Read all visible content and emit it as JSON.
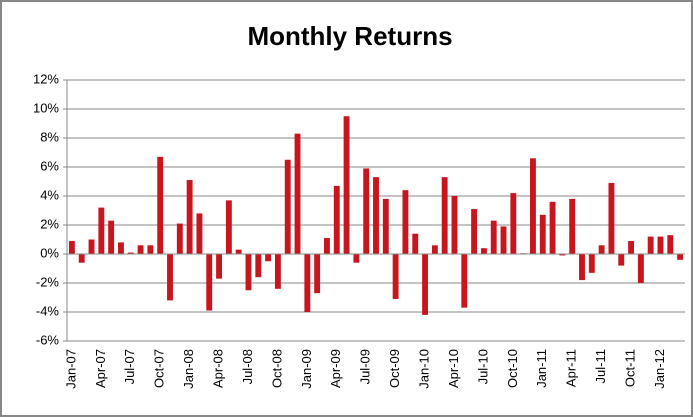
{
  "chart_data": {
    "type": "bar",
    "title": "Monthly Returns",
    "categories": [
      "Jan-07",
      null,
      null,
      "Apr-07",
      null,
      null,
      "Jul-07",
      null,
      null,
      "Oct-07",
      null,
      null,
      "Jan-08",
      null,
      null,
      "Apr-08",
      null,
      null,
      "Jul-08",
      null,
      null,
      "Oct-08",
      null,
      null,
      "Jan-09",
      null,
      null,
      "Apr-09",
      null,
      null,
      "Jul-09",
      null,
      null,
      "Oct-09",
      null,
      null,
      "Jan-10",
      null,
      null,
      "Apr-10",
      null,
      null,
      "Jul-10",
      null,
      null,
      "Oct-10",
      null,
      null,
      "Jan-11",
      null,
      null,
      "Apr-11",
      null,
      null,
      "Jul-11",
      null,
      null,
      "Oct-11",
      null,
      null,
      "Jan-12",
      null,
      null
    ],
    "values": [
      0.9,
      -0.6,
      1.0,
      3.2,
      2.3,
      0.8,
      0.1,
      0.6,
      0.6,
      6.7,
      -3.2,
      2.1,
      5.1,
      2.8,
      -3.9,
      -1.7,
      3.7,
      0.3,
      -2.5,
      -1.6,
      -0.5,
      -2.4,
      6.5,
      8.3,
      -4.0,
      -2.7,
      1.1,
      4.7,
      9.5,
      -0.6,
      5.9,
      5.3,
      3.8,
      -3.1,
      4.4,
      1.4,
      -4.2,
      0.6,
      5.3,
      4.0,
      -3.7,
      3.1,
      0.4,
      2.3,
      1.9,
      4.2,
      0.05,
      6.6,
      2.7,
      3.6,
      -0.1,
      3.8,
      -1.8,
      -1.3,
      0.6,
      4.9,
      -0.8,
      0.9,
      -2.0,
      1.2,
      1.2,
      1.3,
      -0.4
    ],
    "color": "#c8161e",
    "ylim": [
      -6,
      12
    ],
    "yticks": [
      {
        "value": -6,
        "label": "-6%"
      },
      {
        "value": -4,
        "label": "-4%"
      },
      {
        "value": -2,
        "label": "-2%"
      },
      {
        "value": 0,
        "label": "0%"
      },
      {
        "value": 2,
        "label": "2%"
      },
      {
        "value": 4,
        "label": "4%"
      },
      {
        "value": 6,
        "label": "6%"
      },
      {
        "value": 8,
        "label": "8%"
      },
      {
        "value": 10,
        "label": "10%"
      },
      {
        "value": 12,
        "label": "12%"
      }
    ],
    "grid": true
  }
}
